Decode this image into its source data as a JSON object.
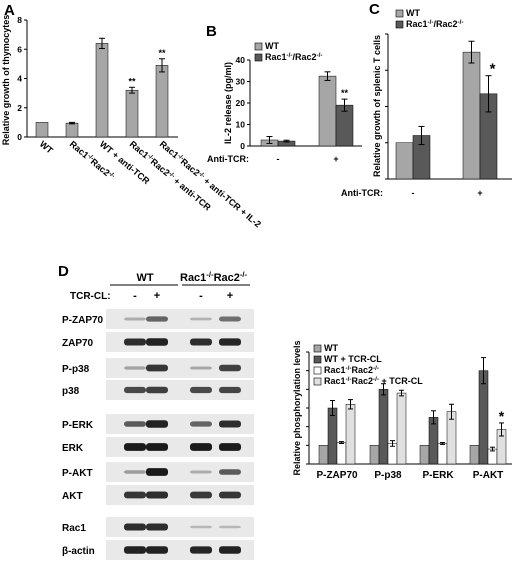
{
  "panels": {
    "A": {
      "letter": "A"
    },
    "B": {
      "letter": "B"
    },
    "C": {
      "letter": "C"
    },
    "D": {
      "letter": "D"
    }
  },
  "blot": {
    "wt_label": "WT",
    "ko_label": "Rac1",
    "ko_sup1": "-/-",
    "ko_mid": "Rac2",
    "ko_sup2": "-/-",
    "tcr_label": "TCR-CL:",
    "lane_signs": [
      "-",
      "+",
      "-",
      "+"
    ],
    "rows": [
      {
        "label": "P-ZAP70",
        "intensity": [
          0.15,
          0.55,
          0.12,
          0.5
        ]
      },
      {
        "label": "ZAP70",
        "intensity": [
          0.85,
          0.9,
          0.85,
          0.88
        ]
      },
      {
        "label": "P-p38",
        "intensity": [
          0.2,
          0.8,
          0.18,
          0.75
        ]
      },
      {
        "label": "p38",
        "intensity": [
          0.7,
          0.75,
          0.7,
          0.72
        ]
      },
      {
        "label": "P-ERK",
        "intensity": [
          0.6,
          0.9,
          0.55,
          0.85
        ]
      },
      {
        "label": "ERK",
        "intensity": [
          0.95,
          0.95,
          0.95,
          0.95
        ]
      },
      {
        "label": "P-AKT",
        "intensity": [
          0.25,
          0.95,
          0.15,
          0.6
        ]
      },
      {
        "label": "AKT",
        "intensity": [
          0.8,
          0.85,
          0.78,
          0.8
        ]
      },
      {
        "label": "Rac1",
        "intensity": [
          0.85,
          0.85,
          0.1,
          0.1
        ]
      },
      {
        "label": "β-actin",
        "intensity": [
          0.9,
          0.9,
          0.88,
          0.9
        ]
      }
    ]
  },
  "chart_data": [
    {
      "panel": "A",
      "type": "bar",
      "ylabel": "Relative growth of thymocytes",
      "ylim": [
        0,
        8
      ],
      "yticks": [
        0,
        2,
        4,
        6,
        8
      ],
      "categories": [
        "WT",
        "Rac1-/-Rac2-/-",
        "WT + anti-TCR",
        "Rac1-/-Rac2-/- + anti-TCR",
        "Rac1-/-Rac2-/- + anti-TCR + IL-2"
      ],
      "values": [
        1.0,
        0.95,
        6.4,
        3.2,
        4.9
      ],
      "errors": [
        0,
        0.05,
        0.35,
        0.2,
        0.45
      ],
      "annotations": [
        "",
        "",
        "",
        "**",
        "**"
      ],
      "color": "#a6a6a6"
    },
    {
      "panel": "B",
      "type": "bar",
      "ylabel": "IL-2 release  (pg/ml)",
      "xlabel": "Anti-TCR:",
      "ylim": [
        0,
        40
      ],
      "yticks": [
        0,
        10,
        20,
        30,
        40
      ],
      "categories": [
        "-",
        "+"
      ],
      "series": [
        {
          "name": "WT",
          "values": [
            2.8,
            32.5
          ],
          "errors": [
            1.6,
            2.0
          ],
          "color": "#a6a6a6"
        },
        {
          "name": "Rac1-/-/Rac2-/-",
          "values": [
            2.3,
            19.0
          ],
          "errors": [
            0.4,
            2.8
          ],
          "color": "#595959"
        }
      ],
      "annotations": [
        "",
        "**"
      ],
      "legend": "top-left"
    },
    {
      "panel": "C",
      "type": "bar",
      "ylabel": "Relative growth of splenic T cells",
      "xlabel": "Anti-TCR:",
      "ylim": [
        0,
        4
      ],
      "yticks": [
        0,
        1,
        2,
        3,
        4
      ],
      "categories": [
        "-",
        "+"
      ],
      "series": [
        {
          "name": "WT",
          "values": [
            1.0,
            3.5
          ],
          "errors": [
            0,
            0.3
          ],
          "color": "#a6a6a6"
        },
        {
          "name": "Rac1-/-/Rac2-/-",
          "values": [
            1.2,
            2.35
          ],
          "errors": [
            0.25,
            0.5
          ],
          "color": "#595959"
        }
      ],
      "annotations": [
        "",
        "*"
      ],
      "legend": "top-left"
    },
    {
      "panel": "D",
      "type": "bar",
      "ylabel": "Relative phosphorylation levels",
      "ylim": [
        0,
        6
      ],
      "yticks": [
        0,
        1,
        2,
        3,
        4,
        5,
        6
      ],
      "categories": [
        "P-ZAP70",
        "P-p38",
        "P-ERK",
        "P-AKT"
      ],
      "series": [
        {
          "name": "WT",
          "values": [
            1,
            1,
            1,
            1
          ],
          "errors": [
            0,
            0,
            0,
            0
          ],
          "color": "#a6a6a6"
        },
        {
          "name": "WT + TCR-CL",
          "values": [
            3.0,
            4.0,
            2.5,
            5.0
          ],
          "errors": [
            0.4,
            0.3,
            0.35,
            0.7
          ],
          "color": "#595959"
        },
        {
          "name": "Rac1-/-Rac2-/-",
          "values": [
            1.15,
            1.1,
            1.1,
            0.8
          ],
          "errors": [
            0.05,
            0.15,
            0.05,
            0.1
          ],
          "color": "#ffffff"
        },
        {
          "name": "Rac1-/-Rac2-/- + TCR-CL",
          "values": [
            3.2,
            3.8,
            2.8,
            1.85
          ],
          "errors": [
            0.25,
            0.15,
            0.4,
            0.35
          ],
          "color": "#e0e0e0"
        }
      ],
      "annotations": [
        "",
        "",
        "",
        "*"
      ],
      "legend": "top-left"
    }
  ]
}
